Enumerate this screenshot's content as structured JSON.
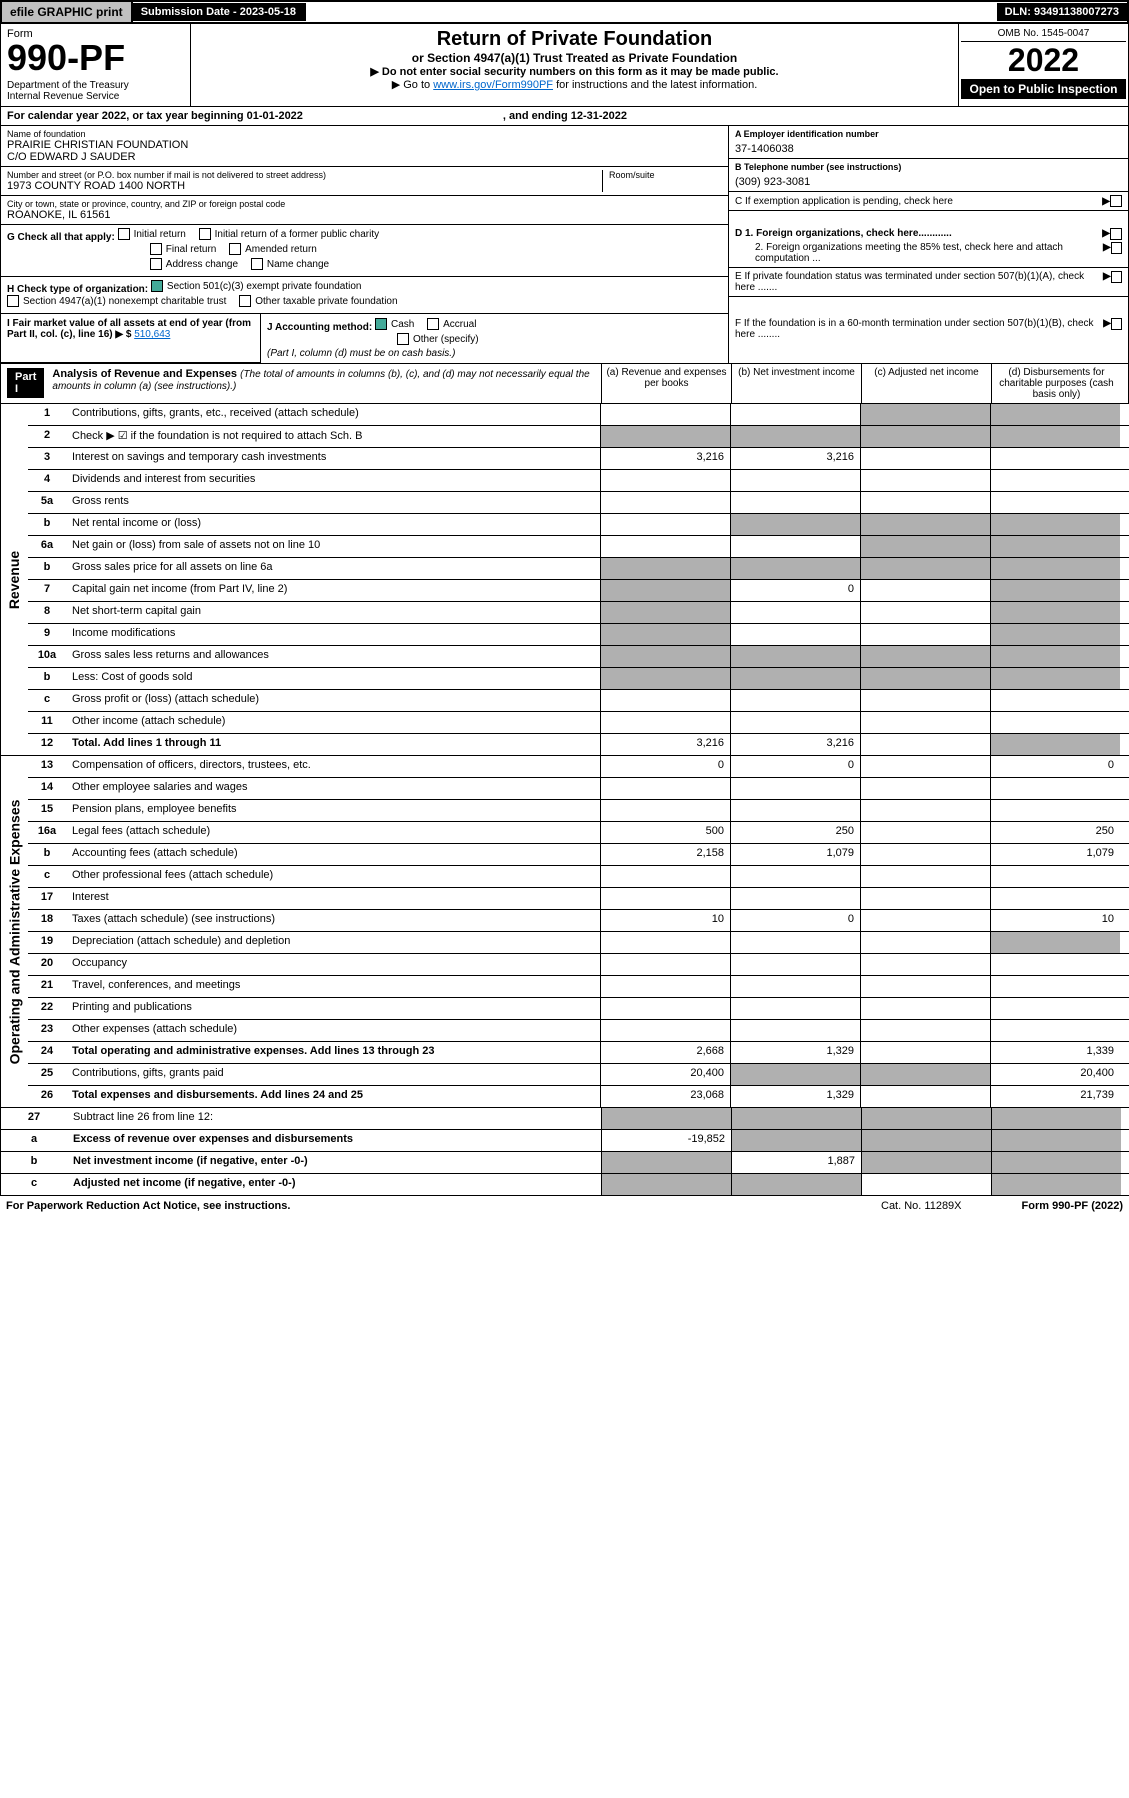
{
  "topbar": {
    "efile": "efile GRAPHIC print",
    "sub_label": "Submission Date - 2023-05-18",
    "dln": "DLN: 93491138007273"
  },
  "header": {
    "form_word": "Form",
    "form_no": "990-PF",
    "dept": "Department of the Treasury\nInternal Revenue Service",
    "title": "Return of Private Foundation",
    "subtitle": "or Section 4947(a)(1) Trust Treated as Private Foundation",
    "note1": "▶ Do not enter social security numbers on this form as it may be made public.",
    "note2_pre": "▶ Go to ",
    "note2_link": "www.irs.gov/Form990PF",
    "note2_post": " for instructions and the latest information.",
    "omb": "OMB No. 1545-0047",
    "year": "2022",
    "open": "Open to Public Inspection"
  },
  "cal": {
    "pre": "For calendar year 2022, or tax year beginning 01-01-2022",
    "end": ", and ending 12-31-2022"
  },
  "name": {
    "lbl": "Name of foundation",
    "val1": "PRAIRIE CHRISTIAN FOUNDATION",
    "val2": "C/O EDWARD J SAUDER"
  },
  "ein": {
    "lbl": "A Employer identification number",
    "val": "37-1406038"
  },
  "addr": {
    "lbl": "Number and street (or P.O. box number if mail is not delivered to street address)",
    "val": "1973 COUNTY ROAD 1400 NORTH",
    "room": "Room/suite"
  },
  "phone": {
    "lbl": "B Telephone number (see instructions)",
    "val": "(309) 923-3081"
  },
  "city": {
    "lbl": "City or town, state or province, country, and ZIP or foreign postal code",
    "val": "ROANOKE, IL  61561"
  },
  "c_pending": "C If exemption application is pending, check here",
  "g": {
    "lbl": "G Check all that apply:",
    "initial": "Initial return",
    "initial_former": "Initial return of a former public charity",
    "final": "Final return",
    "amended": "Amended return",
    "addr_change": "Address change",
    "name_change": "Name change"
  },
  "d": {
    "d1": "D 1. Foreign organizations, check here............",
    "d2": "2. Foreign organizations meeting the 85% test, check here and attach computation ..."
  },
  "h": {
    "lbl": "H Check type of organization:",
    "s501": "Section 501(c)(3) exempt private foundation",
    "s4947": "Section 4947(a)(1) nonexempt charitable trust",
    "other_tax": "Other taxable private foundation"
  },
  "e_term": "E  If private foundation status was terminated under section 507(b)(1)(A), check here .......",
  "i": {
    "lbl": "I Fair market value of all assets at end of year (from Part II, col. (c), line 16)",
    "val": "510,643"
  },
  "j": {
    "lbl": "J Accounting method:",
    "cash": "Cash",
    "accrual": "Accrual",
    "other": "Other (specify)",
    "note": "(Part I, column (d) must be on cash basis.)"
  },
  "f_60": "F  If the foundation is in a 60-month termination under section 507(b)(1)(B), check here ........",
  "part1": {
    "hdr": "Part I",
    "title": "Analysis of Revenue and Expenses",
    "title_em": "(The total of amounts in columns (b), (c), and (d) may not necessarily equal the amounts in column (a) (see instructions).)",
    "col_a": "(a)   Revenue and expenses per books",
    "col_b": "(b)   Net investment income",
    "col_c": "(c)   Adjusted net income",
    "col_d": "(d)  Disbursements for charitable purposes (cash basis only)"
  },
  "side_rev": "Revenue",
  "side_exp": "Operating and Administrative Expenses",
  "rows": {
    "r1": {
      "n": "1",
      "d": "Contributions, gifts, grants, etc., received (attach schedule)"
    },
    "r2": {
      "n": "2",
      "d": "Check ▶ ☑ if the foundation is not required to attach Sch. B"
    },
    "r3": {
      "n": "3",
      "d": "Interest on savings and temporary cash investments",
      "a": "3,216",
      "b": "3,216"
    },
    "r4": {
      "n": "4",
      "d": "Dividends and interest from securities"
    },
    "r5a": {
      "n": "5a",
      "d": "Gross rents"
    },
    "r5b": {
      "n": "b",
      "d": "Net rental income or (loss)"
    },
    "r6a": {
      "n": "6a",
      "d": "Net gain or (loss) from sale of assets not on line 10"
    },
    "r6b": {
      "n": "b",
      "d": "Gross sales price for all assets on line 6a"
    },
    "r7": {
      "n": "7",
      "d": "Capital gain net income (from Part IV, line 2)",
      "b": "0"
    },
    "r8": {
      "n": "8",
      "d": "Net short-term capital gain"
    },
    "r9": {
      "n": "9",
      "d": "Income modifications"
    },
    "r10a": {
      "n": "10a",
      "d": "Gross sales less returns and allowances"
    },
    "r10b": {
      "n": "b",
      "d": "Less: Cost of goods sold"
    },
    "r10c": {
      "n": "c",
      "d": "Gross profit or (loss) (attach schedule)"
    },
    "r11": {
      "n": "11",
      "d": "Other income (attach schedule)"
    },
    "r12": {
      "n": "12",
      "d": "Total. Add lines 1 through 11",
      "a": "3,216",
      "b": "3,216",
      "bold": true
    },
    "r13": {
      "n": "13",
      "d": "Compensation of officers, directors, trustees, etc.",
      "a": "0",
      "b": "0",
      "dd": "0"
    },
    "r14": {
      "n": "14",
      "d": "Other employee salaries and wages"
    },
    "r15": {
      "n": "15",
      "d": "Pension plans, employee benefits"
    },
    "r16a": {
      "n": "16a",
      "d": "Legal fees (attach schedule)",
      "a": "500",
      "b": "250",
      "dd": "250"
    },
    "r16b": {
      "n": "b",
      "d": "Accounting fees (attach schedule)",
      "a": "2,158",
      "b": "1,079",
      "dd": "1,079"
    },
    "r16c": {
      "n": "c",
      "d": "Other professional fees (attach schedule)"
    },
    "r17": {
      "n": "17",
      "d": "Interest"
    },
    "r18": {
      "n": "18",
      "d": "Taxes (attach schedule) (see instructions)",
      "a": "10",
      "b": "0",
      "dd": "10"
    },
    "r19": {
      "n": "19",
      "d": "Depreciation (attach schedule) and depletion"
    },
    "r20": {
      "n": "20",
      "d": "Occupancy"
    },
    "r21": {
      "n": "21",
      "d": "Travel, conferences, and meetings"
    },
    "r22": {
      "n": "22",
      "d": "Printing and publications"
    },
    "r23": {
      "n": "23",
      "d": "Other expenses (attach schedule)"
    },
    "r24": {
      "n": "24",
      "d": "Total operating and administrative expenses. Add lines 13 through 23",
      "a": "2,668",
      "b": "1,329",
      "dd": "1,339",
      "bold": true
    },
    "r25": {
      "n": "25",
      "d": "Contributions, gifts, grants paid",
      "a": "20,400",
      "dd": "20,400"
    },
    "r26": {
      "n": "26",
      "d": "Total expenses and disbursements. Add lines 24 and 25",
      "a": "23,068",
      "b": "1,329",
      "dd": "21,739",
      "bold": true
    },
    "r27": {
      "n": "27",
      "d": "Subtract line 26 from line 12:"
    },
    "r27a": {
      "n": "a",
      "d": "Excess of revenue over expenses and disbursements",
      "a": "-19,852",
      "bold": true
    },
    "r27b": {
      "n": "b",
      "d": "Net investment income (if negative, enter -0-)",
      "b": "1,887",
      "bold": true
    },
    "r27c": {
      "n": "c",
      "d": "Adjusted net income (if negative, enter -0-)",
      "bold": true
    }
  },
  "footer": {
    "left": "For Paperwork Reduction Act Notice, see instructions.",
    "cat": "Cat. No. 11289X",
    "form": "Form 990-PF (2022)"
  }
}
